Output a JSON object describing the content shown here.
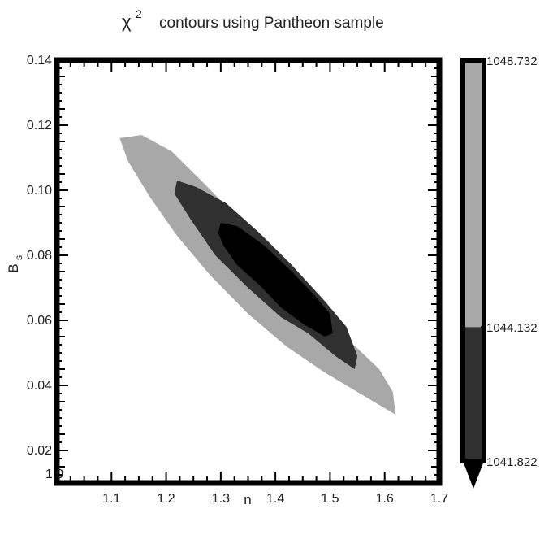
{
  "chart_data": {
    "type": "contour",
    "title_symbol": "χ",
    "title_superscript": "2",
    "title_text": "contours using Pantheon sample",
    "xlabel": "n",
    "ylabel_main": "B",
    "ylabel_sub": "s",
    "xlim": [
      1.0,
      1.7
    ],
    "ylim": [
      0.01,
      0.14
    ],
    "x_ticks": [
      {
        "value": 1.0,
        "label": "1.0"
      },
      {
        "value": 1.1,
        "label": "1.1"
      },
      {
        "value": 1.2,
        "label": "1.2"
      },
      {
        "value": 1.3,
        "label": "1.3"
      },
      {
        "value": 1.4,
        "label": "1.4"
      },
      {
        "value": 1.5,
        "label": "1.5"
      },
      {
        "value": 1.6,
        "label": "1.6"
      },
      {
        "value": 1.7,
        "label": "1.7"
      }
    ],
    "y_ticks": [
      {
        "value": 0.02,
        "label": "0.02"
      },
      {
        "value": 0.04,
        "label": "0.04"
      },
      {
        "value": 0.06,
        "label": "0.06"
      },
      {
        "value": 0.08,
        "label": "0.08"
      },
      {
        "value": 0.1,
        "label": "0.10"
      },
      {
        "value": 0.12,
        "label": "0.12"
      },
      {
        "value": 0.14,
        "label": "0.14"
      }
    ],
    "contours": [
      {
        "level": "outer",
        "color": "#a8a8a8",
        "points": [
          [
            1.115,
            0.116
          ],
          [
            1.155,
            0.117
          ],
          [
            1.21,
            0.112
          ],
          [
            1.27,
            0.102
          ],
          [
            1.34,
            0.09
          ],
          [
            1.41,
            0.078
          ],
          [
            1.48,
            0.064
          ],
          [
            1.54,
            0.053
          ],
          [
            1.59,
            0.045
          ],
          [
            1.615,
            0.038
          ],
          [
            1.62,
            0.031
          ],
          [
            1.61,
            0.032
          ],
          [
            1.56,
            0.037
          ],
          [
            1.49,
            0.044
          ],
          [
            1.42,
            0.052
          ],
          [
            1.35,
            0.062
          ],
          [
            1.28,
            0.074
          ],
          [
            1.22,
            0.086
          ],
          [
            1.17,
            0.098
          ],
          [
            1.13,
            0.109
          ]
        ]
      },
      {
        "level": "middle",
        "color": "#303030",
        "points": [
          [
            1.22,
            0.103
          ],
          [
            1.255,
            0.101
          ],
          [
            1.31,
            0.096
          ],
          [
            1.37,
            0.087
          ],
          [
            1.43,
            0.077
          ],
          [
            1.49,
            0.066
          ],
          [
            1.53,
            0.058
          ],
          [
            1.55,
            0.049
          ],
          [
            1.545,
            0.045
          ],
          [
            1.51,
            0.049
          ],
          [
            1.46,
            0.056
          ],
          [
            1.41,
            0.061
          ],
          [
            1.35,
            0.07
          ],
          [
            1.29,
            0.08
          ],
          [
            1.245,
            0.091
          ],
          [
            1.215,
            0.099
          ]
        ]
      },
      {
        "level": "inner",
        "color": "#000000",
        "points": [
          [
            1.3,
            0.09
          ],
          [
            1.33,
            0.089
          ],
          [
            1.38,
            0.083
          ],
          [
            1.43,
            0.075
          ],
          [
            1.47,
            0.068
          ],
          [
            1.5,
            0.062
          ],
          [
            1.505,
            0.056
          ],
          [
            1.49,
            0.055
          ],
          [
            1.45,
            0.059
          ],
          [
            1.41,
            0.064
          ],
          [
            1.37,
            0.071
          ],
          [
            1.33,
            0.077
          ],
          [
            1.305,
            0.083
          ],
          [
            1.295,
            0.087
          ]
        ]
      }
    ],
    "colorbar": {
      "segments": [
        {
          "from": 1041.822,
          "to": 1044.132,
          "color": "#303030"
        },
        {
          "from": 1044.132,
          "to": 1048.732,
          "color": "#a8a8a8"
        }
      ],
      "tick_labels": [
        {
          "value": 1048.732,
          "label": "1048.732"
        },
        {
          "value": 1044.132,
          "label": "1044.132"
        },
        {
          "value": 1041.822,
          "label": "1041.822"
        }
      ],
      "extend_below_color": "#000000"
    }
  }
}
